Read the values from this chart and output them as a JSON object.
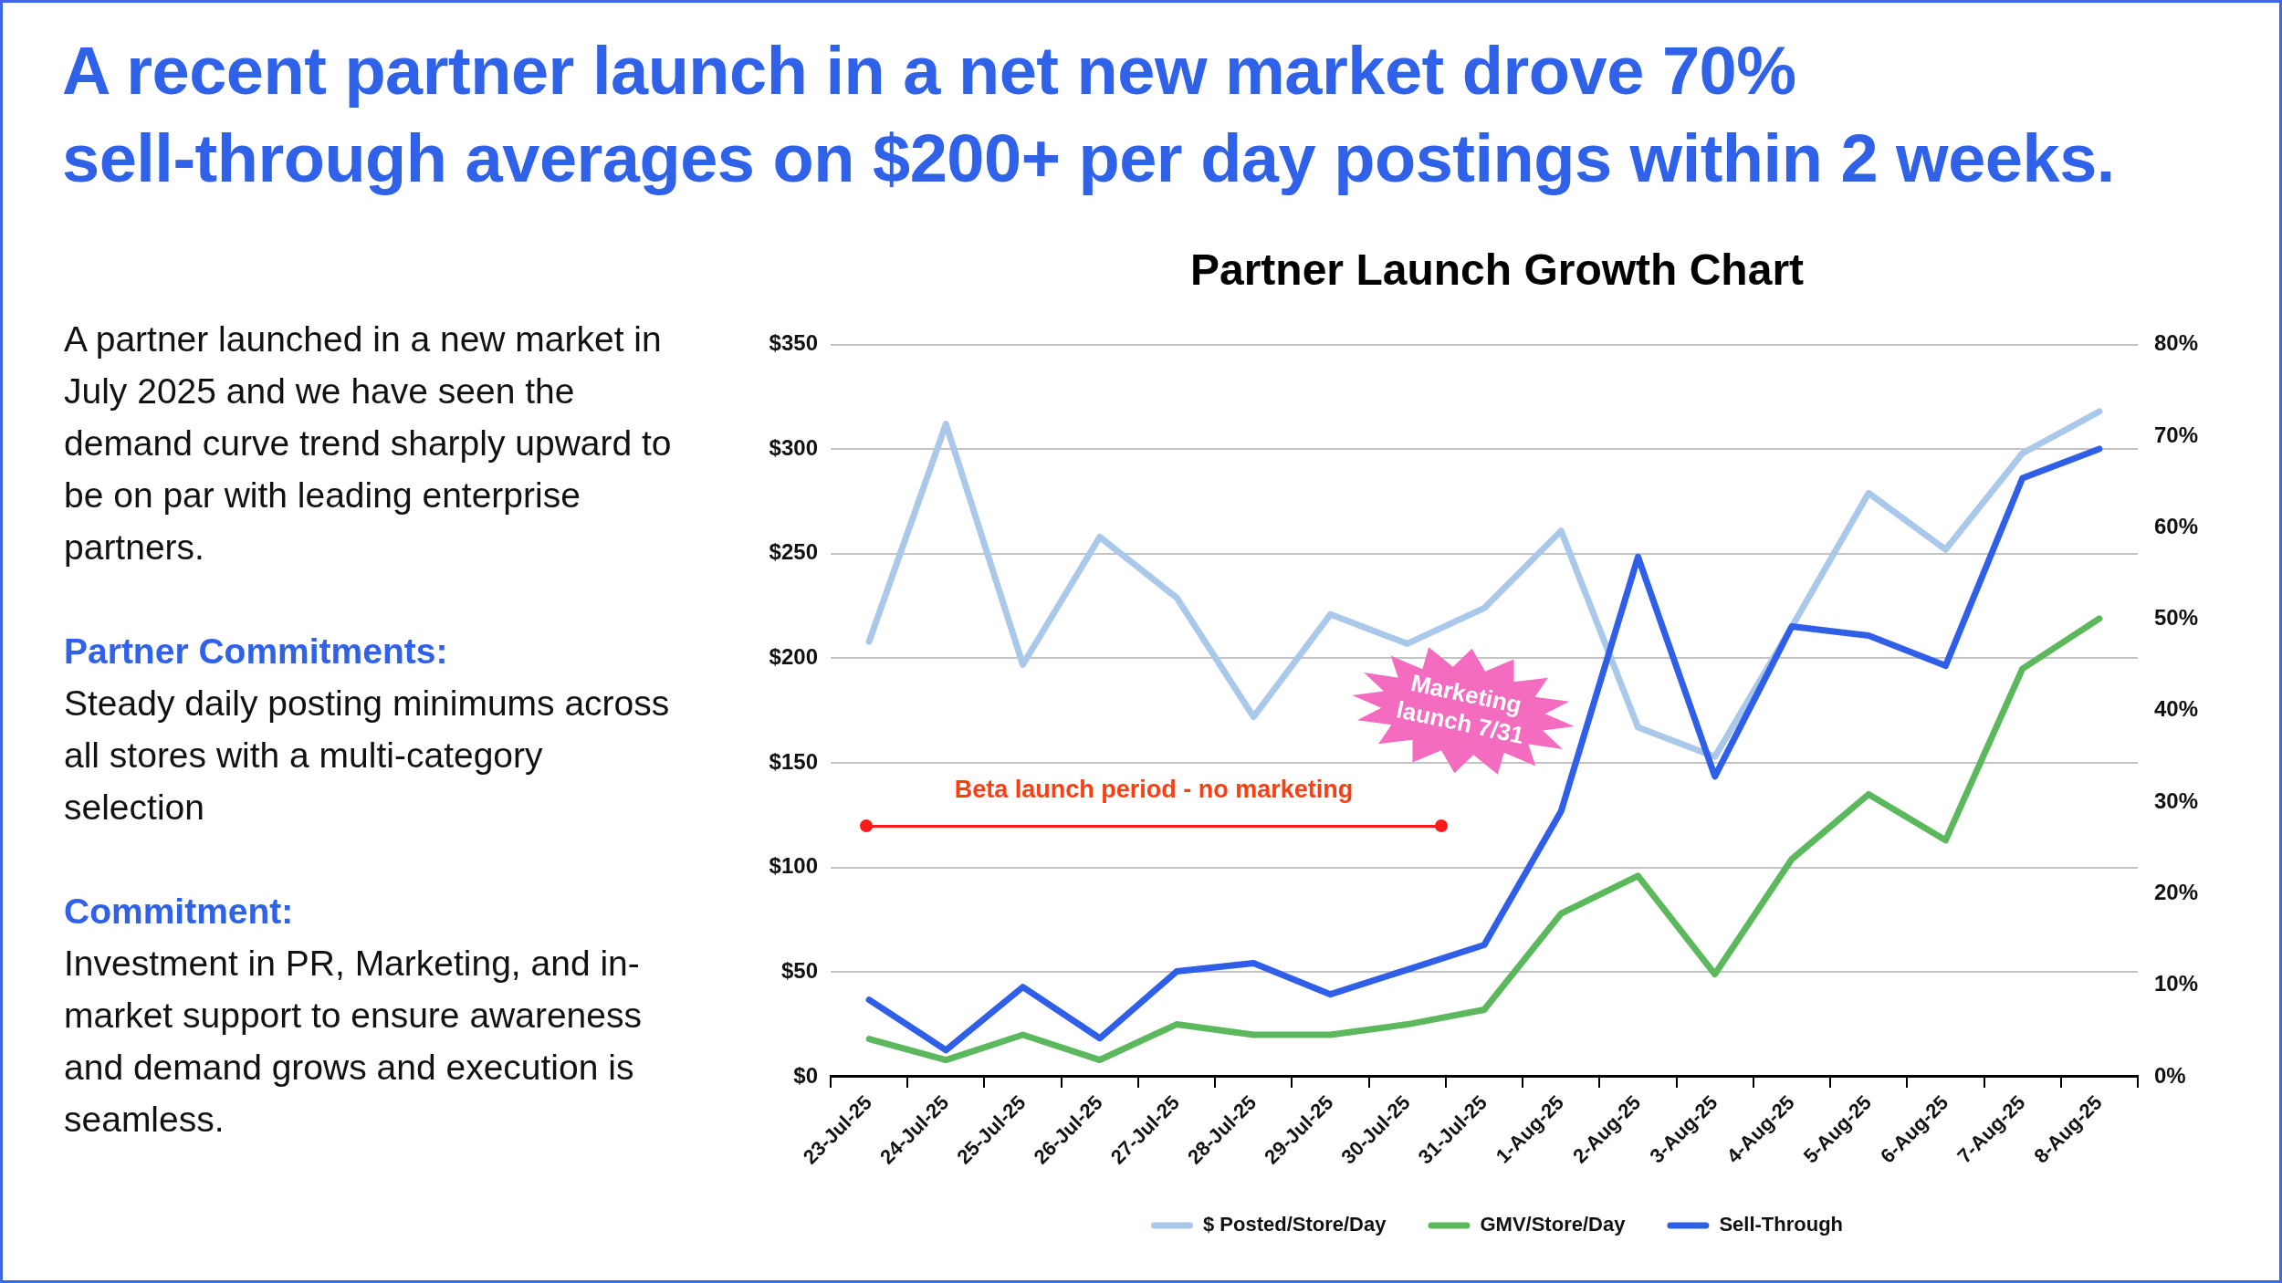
{
  "chart_data": {
    "type": "line",
    "title": "A recent partner launch in a net new market drove 70%\nsell-through averages on $200+ per day postings within 2 weeks.",
    "subtitle": "Partner Launch Growth Chart",
    "categories": [
      "23-Jul-25",
      "24-Jul-25",
      "25-Jul-25",
      "26-Jul-25",
      "27-Jul-25",
      "28-Jul-25",
      "29-Jul-25",
      "30-Jul-25",
      "31-Jul-25",
      "1-Aug-25",
      "2-Aug-25",
      "3-Aug-25",
      "4-Aug-25",
      "5-Aug-25",
      "6-Aug-25",
      "7-Aug-25",
      "8-Aug-25"
    ],
    "series": [
      {
        "name": "$ Posted/Store/Day",
        "color": "#aac8ea",
        "values": [
          208,
          312,
          197,
          258,
          229,
          172,
          221,
          207,
          224,
          261,
          167,
          153,
          215,
          279,
          252,
          298,
          318
        ]
      },
      {
        "name": "GMV/Store/Day",
        "color": "#5cb85c",
        "values": [
          18,
          8,
          20,
          8,
          25,
          20,
          20,
          25,
          32,
          78,
          96,
          49,
          104,
          135,
          113,
          195,
          219
        ]
      },
      {
        "name": "Sell-Through",
        "color": "#2f5ee9",
        "axis": "y2",
        "values": [
          8.4,
          2.9,
          9.8,
          4.2,
          11.5,
          12.4,
          9.0,
          11.7,
          14.4,
          29.0,
          56.8,
          32.8,
          49.2,
          48.2,
          44.9,
          65.4,
          68.6
        ]
      }
    ],
    "ylim": [
      0,
      350
    ],
    "yticks": [
      {
        "value": 0,
        "label": "$0"
      },
      {
        "value": 50,
        "label": "$50"
      },
      {
        "value": 100,
        "label": "$100"
      },
      {
        "value": 150,
        "label": "$150"
      },
      {
        "value": 200,
        "label": "$200"
      },
      {
        "value": 250,
        "label": "$250"
      },
      {
        "value": 300,
        "label": "$300"
      },
      {
        "value": 350,
        "label": "$350"
      }
    ],
    "y2lim": [
      0,
      80
    ],
    "y2ticks": [
      {
        "value": 0,
        "label": "0%"
      },
      {
        "value": 10,
        "label": "10%"
      },
      {
        "value": 20,
        "label": "20%"
      },
      {
        "value": 30,
        "label": "30%"
      },
      {
        "value": 40,
        "label": "40%"
      },
      {
        "value": 50,
        "label": "50%"
      },
      {
        "value": 60,
        "label": "60%"
      },
      {
        "value": 70,
        "label": "70%"
      },
      {
        "value": 80,
        "label": "80%"
      }
    ],
    "grid": "y",
    "legend": "bottom",
    "annotations": [
      "A partner launched in a new market in July 2025 and we have seen the demand curve trend sharply upward to be on par with leading enterprise partners.",
      "Partner Commitments:",
      "Steady daily posting minimums across all stores with a multi-category selection",
      "Commitment:",
      "Investment in PR, Marketing, and in-market support to ensure awareness and demand grows and execution is seamless.",
      "Beta launch period - no marketing",
      "Marketing launch 7/31"
    ]
  }
}
